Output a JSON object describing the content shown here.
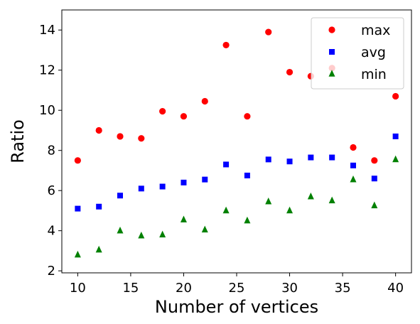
{
  "chart_data": {
    "type": "scatter",
    "title": "",
    "xlabel": "Number of vertices",
    "ylabel": "Ratio",
    "xlim": [
      8.5,
      41.5
    ],
    "ylim": [
      1.9,
      15.0
    ],
    "xticks": [
      10,
      15,
      20,
      25,
      30,
      35,
      40
    ],
    "yticks": [
      2,
      4,
      6,
      8,
      10,
      12,
      14
    ],
    "grid": false,
    "legend_position": "top-right",
    "series": [
      {
        "name": "max",
        "marker": "circle",
        "color": "#ff0000",
        "x": [
          10,
          12,
          14,
          16,
          18,
          20,
          22,
          24,
          26,
          28,
          30,
          32,
          34,
          36,
          38,
          40
        ],
        "y": [
          7.5,
          9.0,
          8.7,
          8.6,
          9.95,
          9.7,
          10.45,
          13.25,
          9.7,
          13.9,
          11.9,
          11.7,
          12.1,
          8.15,
          7.5,
          10.7
        ]
      },
      {
        "name": "avg",
        "marker": "square",
        "color": "#0000ff",
        "x": [
          10,
          12,
          14,
          16,
          18,
          20,
          22,
          24,
          26,
          28,
          30,
          32,
          34,
          36,
          38,
          40
        ],
        "y": [
          5.1,
          5.2,
          5.75,
          6.1,
          6.2,
          6.4,
          6.55,
          7.3,
          6.75,
          7.55,
          7.45,
          7.65,
          7.65,
          7.25,
          6.6,
          8.7
        ]
      },
      {
        "name": "min",
        "marker": "triangle",
        "color": "#008000",
        "x": [
          10,
          12,
          14,
          16,
          18,
          20,
          22,
          24,
          26,
          28,
          30,
          32,
          34,
          36,
          38,
          40
        ],
        "y": [
          2.8,
          3.05,
          4.0,
          3.75,
          3.8,
          4.55,
          4.05,
          5.0,
          4.5,
          5.45,
          5.0,
          5.7,
          5.5,
          6.55,
          5.25,
          7.55
        ]
      }
    ]
  }
}
